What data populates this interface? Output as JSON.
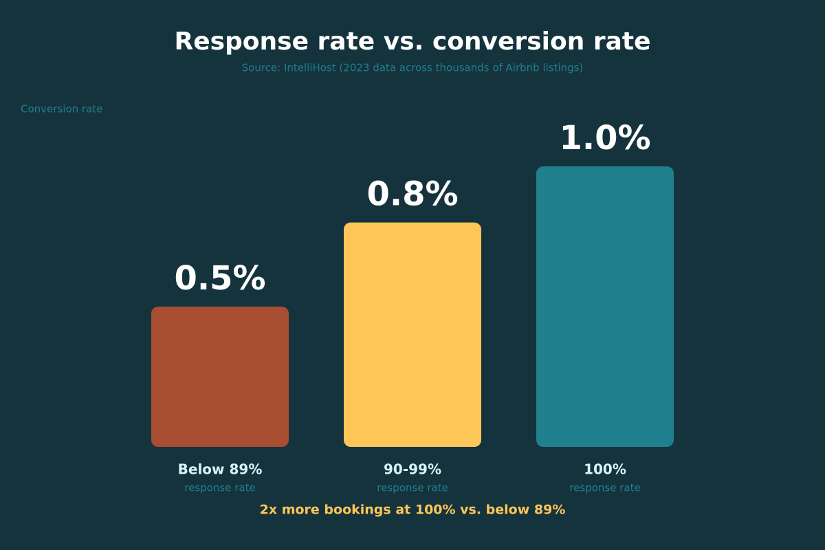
{
  "chart_data": {
    "type": "bar",
    "title": "Response rate vs. conversion rate",
    "subtitle": "Source: IntelliHost (2023 data across thousands of Airbnb listings)",
    "y_label": "Conversion rate",
    "categories": [
      "Below 89%",
      "90-99%",
      "100%"
    ],
    "category_sublabel": "response rate",
    "values": [
      0.5,
      0.8,
      1.0
    ],
    "value_labels": [
      "0.5%",
      "0.8%",
      "1.0%"
    ],
    "colors": [
      "#a84e32",
      "#fec657",
      "#20808d"
    ],
    "annotation": "2x more bookings at 100% vs. below 89%"
  }
}
